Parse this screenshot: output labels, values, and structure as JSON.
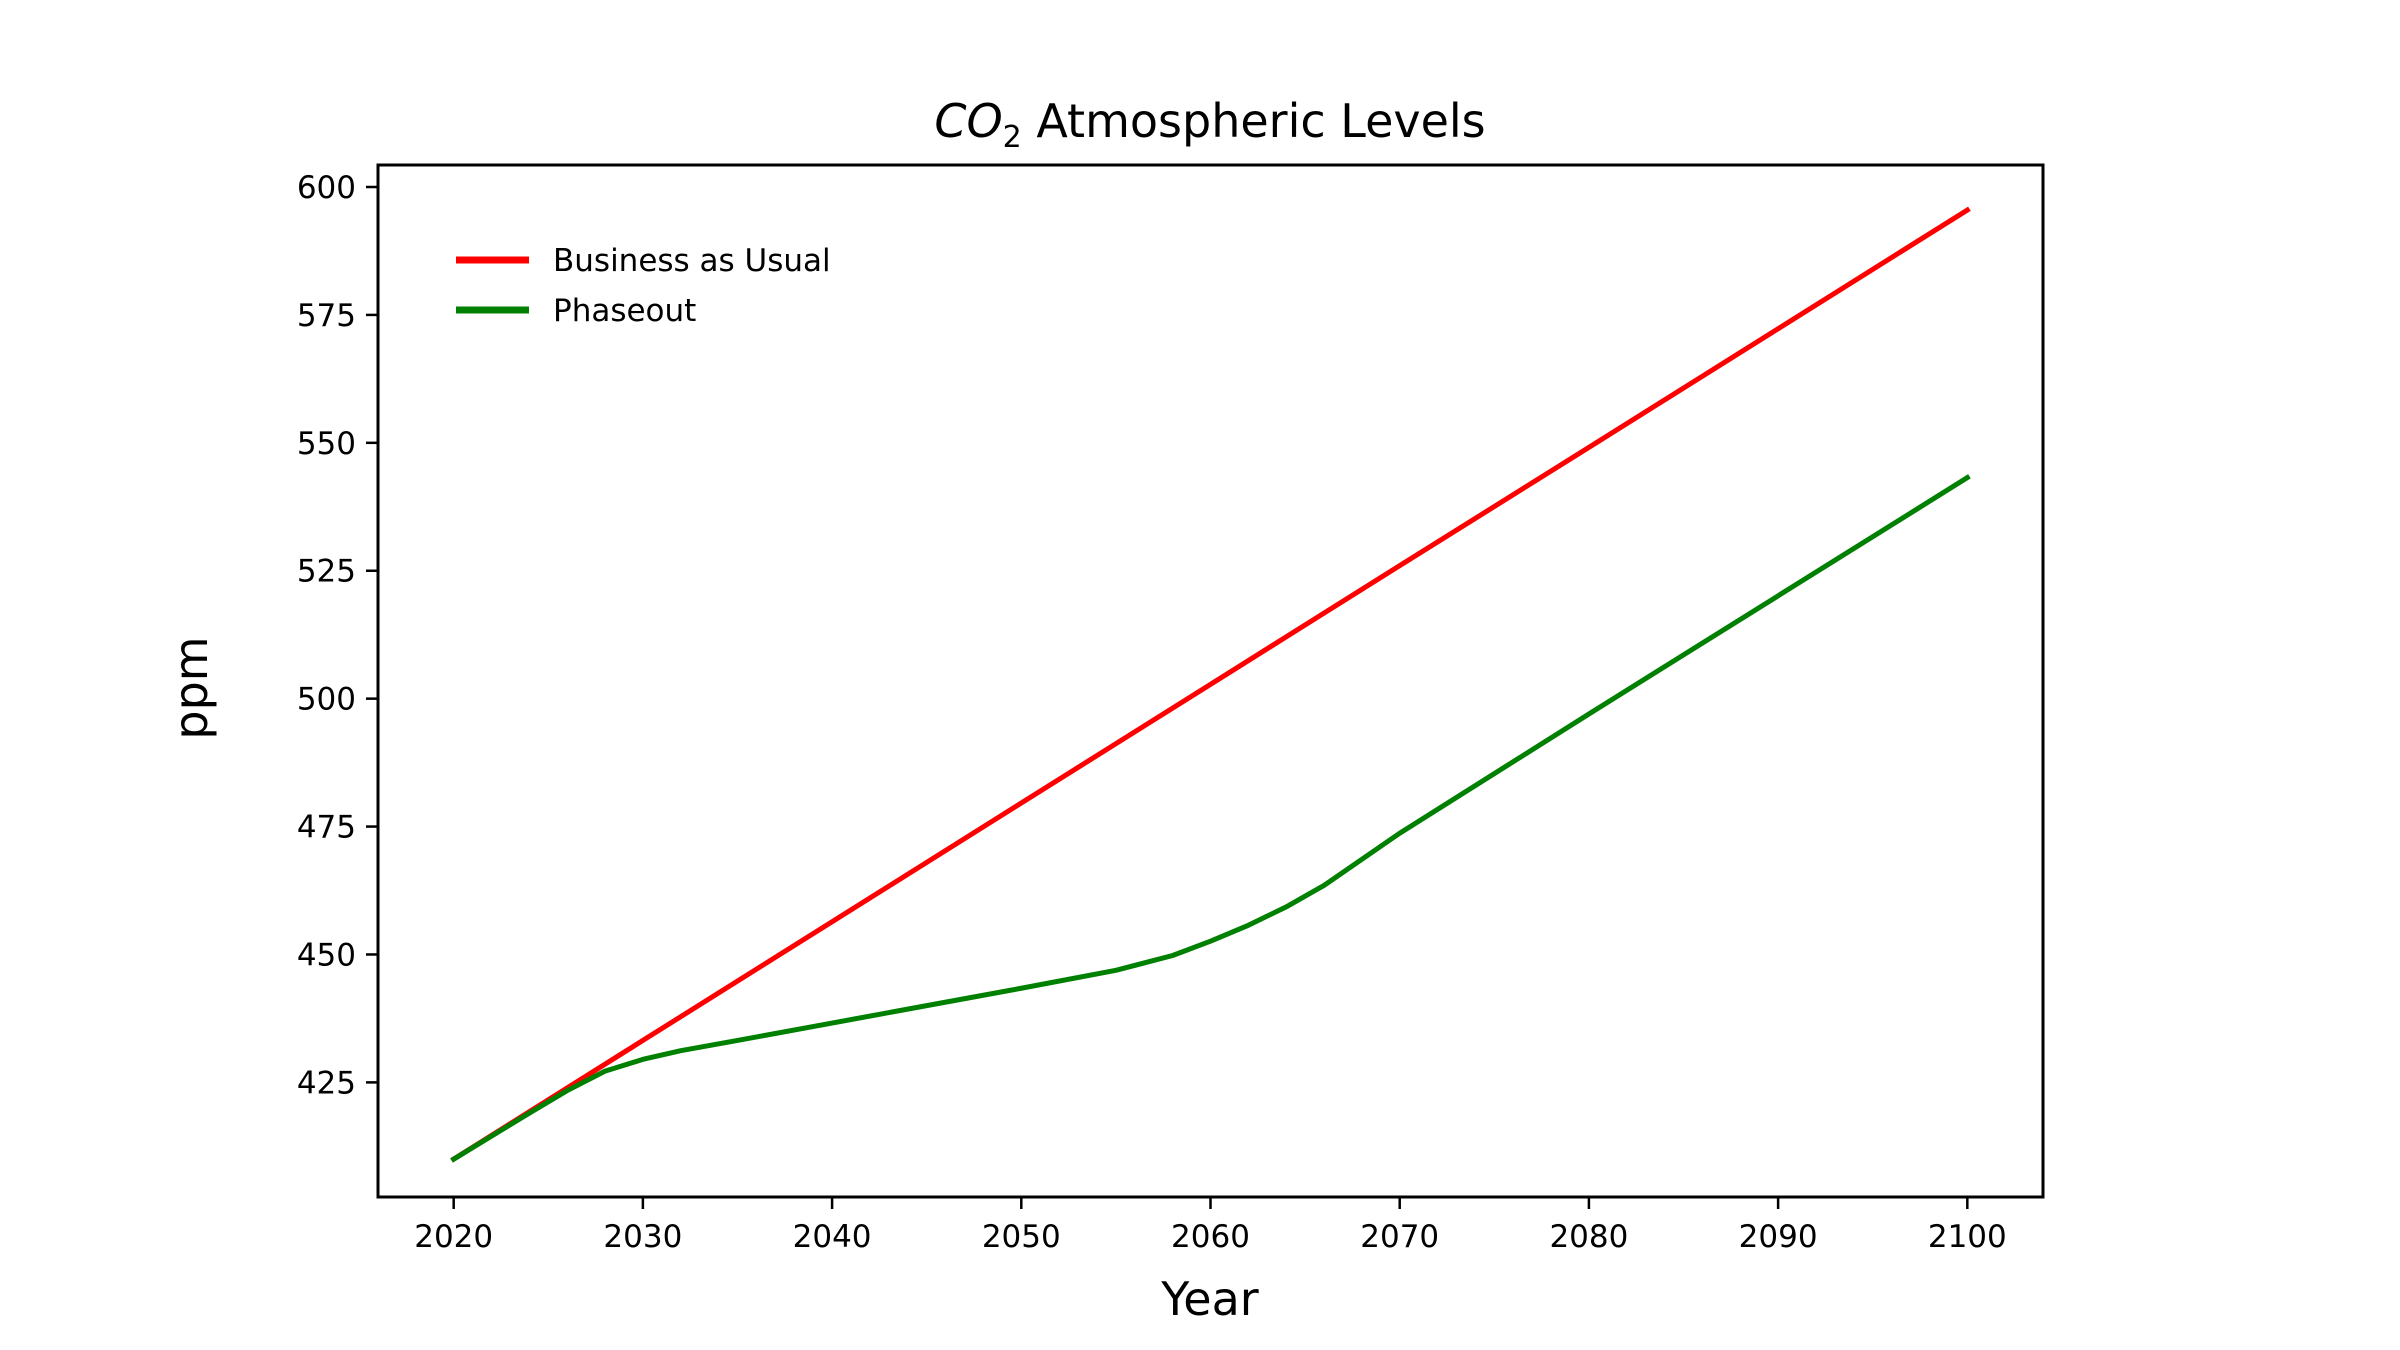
{
  "chart_data": {
    "type": "line",
    "title": {
      "main": "CO",
      "subscript": "2",
      "rest": " Atmospheric Levels"
    },
    "xlabel": "Year",
    "ylabel": "ppm",
    "xlim": [
      2016,
      2104
    ],
    "ylim": [
      402.6,
      604.3
    ],
    "xticks": [
      2020,
      2030,
      2040,
      2050,
      2060,
      2070,
      2080,
      2090,
      2100
    ],
    "yticks": [
      425,
      450,
      475,
      500,
      525,
      550,
      575,
      600
    ],
    "grid": false,
    "legend_placement": "upper-left",
    "series": [
      {
        "name": "Business as Usual",
        "color": "#ff0000",
        "x": [
          2020,
          2030,
          2040,
          2050,
          2060,
          2070,
          2080,
          2090,
          2100
        ],
        "y": [
          410,
          433.2,
          456.4,
          479.6,
          502.8,
          526.0,
          549.1,
          572.3,
          595.5
        ]
      },
      {
        "name": "Phaseout",
        "color": "#008000",
        "x": [
          2020,
          2022,
          2024,
          2026,
          2028,
          2030,
          2032,
          2035,
          2040,
          2045,
          2050,
          2055,
          2058,
          2060,
          2062,
          2064,
          2066,
          2070,
          2080,
          2090,
          2100
        ],
        "y": [
          410,
          414.5,
          419.0,
          423.4,
          427.2,
          429.5,
          431.2,
          433.2,
          436.6,
          440.0,
          443.4,
          446.9,
          449.8,
          452.6,
          455.7,
          459.3,
          463.5,
          473.7,
          497.0,
          520.1,
          543.2
        ]
      }
    ]
  }
}
